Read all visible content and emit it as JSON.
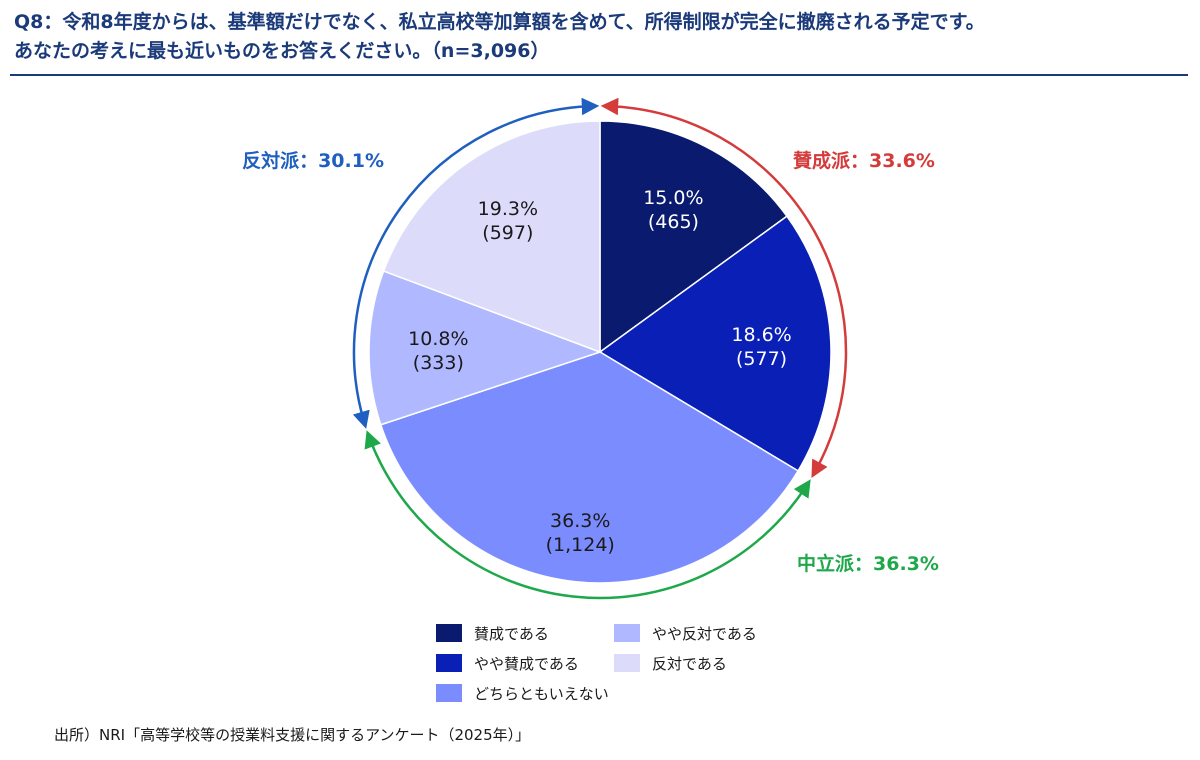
{
  "header": {
    "q_label": "Q8",
    "q_sep": "：",
    "line1": "令和8年度からは、基準額だけでなく、私立高校等加算額を含めて、所得制限が完全に撤廃される予定です。",
    "line2": "あなたの考えに最も近いものをお答えください。（n=3,096）"
  },
  "chart_data": {
    "type": "pie",
    "total_n": 3096,
    "start_angle_deg": 0,
    "direction": "clockwise",
    "slices": [
      {
        "label": "賛成である",
        "percent": 15.0,
        "count": 465,
        "percent_text": "15.0%",
        "count_text": "(465)",
        "color": "#0a1a6e",
        "label_color": "#ffffff"
      },
      {
        "label": "やや賛成である",
        "percent": 18.6,
        "count": 577,
        "percent_text": "18.6%",
        "count_text": "(577)",
        "color": "#0a1fb5",
        "label_color": "#ffffff"
      },
      {
        "label": "どちらともいえない",
        "percent": 36.3,
        "count": 1124,
        "percent_text": "36.3%",
        "count_text": "(1,124)",
        "color": "#7b8cff",
        "label_color": "#1a1a1a"
      },
      {
        "label": "やや反対である",
        "percent": 10.8,
        "count": 333,
        "percent_text": "10.8%",
        "count_text": "(333)",
        "color": "#b0b8ff",
        "label_color": "#1a1a1a"
      },
      {
        "label": "反対である",
        "percent": 19.3,
        "count": 597,
        "percent_text": "19.3%",
        "count_text": "(597)",
        "color": "#dcdcfa",
        "label_color": "#1a1a1a"
      }
    ],
    "groups": [
      {
        "key": "support",
        "label": "賛成派：33.6%",
        "percent": 33.6,
        "color": "#d43b3b",
        "slices": [
          0,
          1
        ]
      },
      {
        "key": "neutral",
        "label": "中立派：36.3%",
        "percent": 36.3,
        "color": "#1ea84a",
        "slices": [
          2
        ]
      },
      {
        "key": "oppose",
        "label": "反対派：30.1%",
        "percent": 30.1,
        "color": "#1f5fbf",
        "slices": [
          3,
          4
        ]
      }
    ],
    "legend": [
      {
        "label": "賛成である",
        "color": "#0a1a6e"
      },
      {
        "label": "やや反対である",
        "color": "#b0b8ff"
      },
      {
        "label": "やや賛成である",
        "color": "#0a1fb5"
      },
      {
        "label": "反対である",
        "color": "#dcdcfa"
      },
      {
        "label": "どちらともいえない",
        "color": "#7b8cff"
      }
    ]
  },
  "source": "出所）NRI「高等学校等の授業料支援に関するアンケート（2025年）」"
}
